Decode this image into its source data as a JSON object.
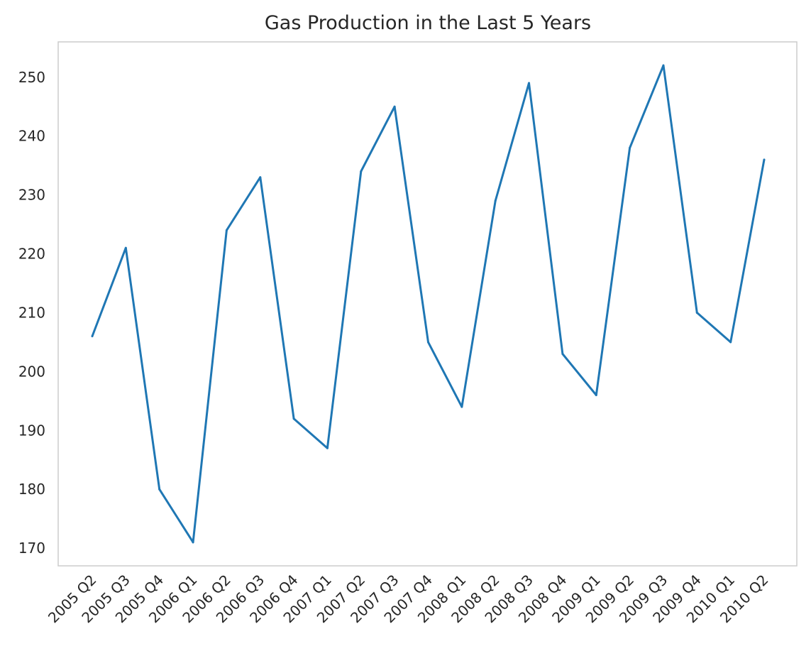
{
  "chart_data": {
    "type": "line",
    "title": "Gas Production in the Last 5 Years",
    "xlabel": "",
    "ylabel": "",
    "categories": [
      "2005 Q2",
      "2005 Q3",
      "2005 Q4",
      "2006 Q1",
      "2006 Q2",
      "2006 Q3",
      "2006 Q4",
      "2007 Q1",
      "2007 Q2",
      "2007 Q3",
      "2007 Q4",
      "2008 Q1",
      "2008 Q2",
      "2008 Q3",
      "2008 Q4",
      "2009 Q1",
      "2009 Q2",
      "2009 Q3",
      "2009 Q4",
      "2010 Q1",
      "2010 Q2"
    ],
    "series": [
      {
        "values": [
          206,
          221,
          180,
          171,
          224,
          233,
          192,
          187,
          234,
          245,
          205,
          194,
          229,
          249,
          203,
          196,
          238,
          252,
          210,
          205,
          236
        ]
      }
    ],
    "ylim": [
      167,
      256
    ],
    "yticks": [
      170,
      180,
      190,
      200,
      210,
      220,
      230,
      240,
      250
    ],
    "grid": false,
    "line_color": "#1f77b4",
    "x_tick_rotation_deg": 45
  }
}
